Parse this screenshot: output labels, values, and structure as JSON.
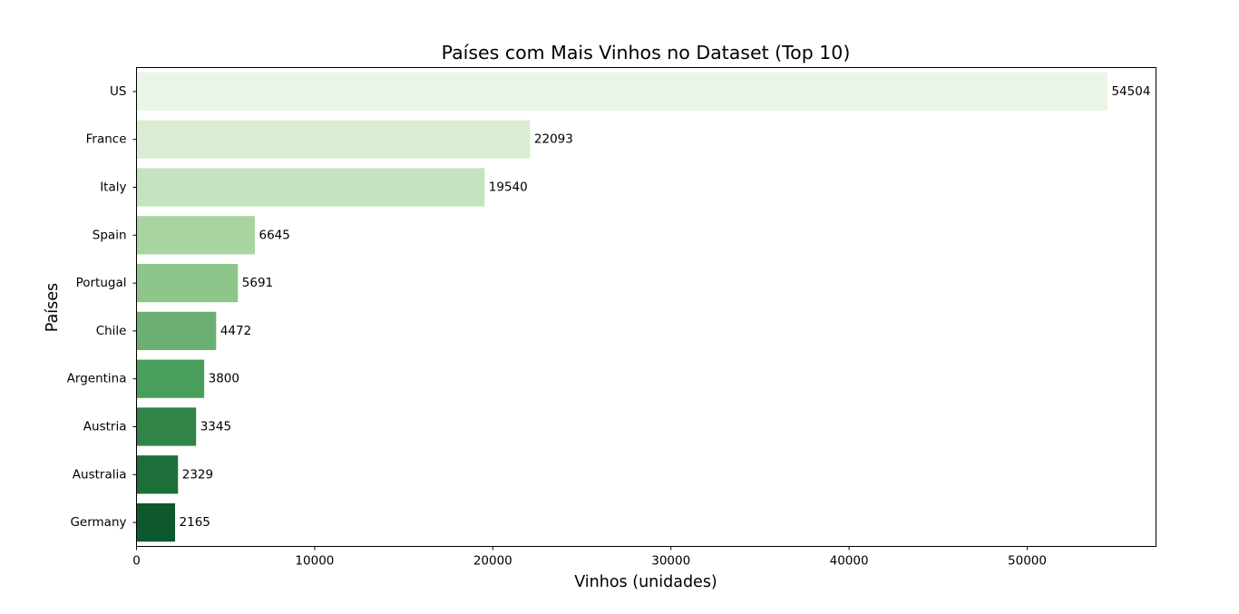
{
  "chart_data": {
    "type": "bar",
    "orientation": "horizontal",
    "title": "Países com Mais Vinhos no Dataset (Top 10)",
    "xlabel": "Vinhos (unidades)",
    "ylabel": "Países",
    "categories": [
      "US",
      "France",
      "Italy",
      "Spain",
      "Portugal",
      "Chile",
      "Argentina",
      "Austria",
      "Australia",
      "Germany"
    ],
    "values": [
      54504,
      22093,
      19540,
      6645,
      5691,
      4472,
      3800,
      3345,
      2329,
      2165
    ],
    "data_labels": [
      "54504",
      "22093",
      "19540",
      "6645",
      "5691",
      "4472",
      "3800",
      "3345",
      "2329",
      "2165"
    ],
    "xlim": [
      0,
      57229
    ],
    "xticks": [
      0,
      10000,
      20000,
      30000,
      40000,
      50000
    ],
    "xtick_labels": [
      "0",
      "10000",
      "20000",
      "30000",
      "40000",
      "50000"
    ],
    "grid": false,
    "legend": "none",
    "colors": [
      "#ebf5e7",
      "#daedd4",
      "#c5e3c0",
      "#a9d4a1",
      "#8dc58a",
      "#6bb072",
      "#4a9e5c",
      "#328348",
      "#1e6e3a",
      "#0d582c"
    ]
  }
}
